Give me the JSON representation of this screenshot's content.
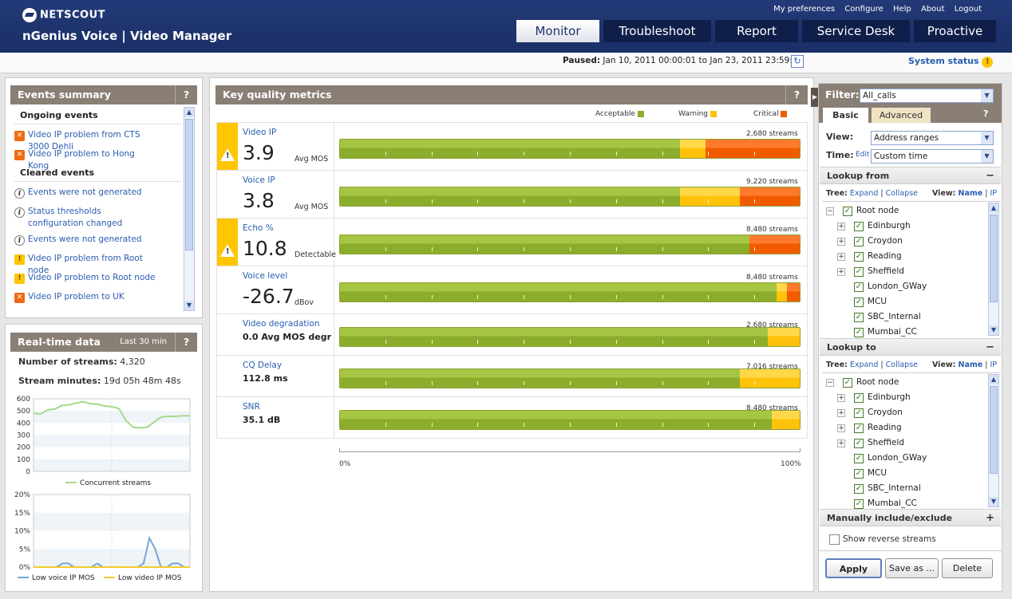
{
  "app": {
    "logo": "NETSCOUT",
    "title": "nGenius Voice | Video Manager"
  },
  "top_links": [
    "My preferences",
    "Configure",
    "Help",
    "About",
    "Logout"
  ],
  "nav_tabs": [
    "Monitor",
    "Troubleshoot",
    "Report",
    "Service Desk",
    "Proactive"
  ],
  "status": {
    "paused_label": "Paused:",
    "paused_range": "Jan 10, 2011 00:00:01 to Jan 23, 2011 23:59:59",
    "system_status": "System status"
  },
  "events": {
    "title": "Events summary",
    "help": "?",
    "ongoing_header": "Ongoing events",
    "ongoing": [
      {
        "icon": "error-icon",
        "text": "Video IP problem from CTS 3000 Dehli"
      },
      {
        "icon": "error-icon",
        "text": "Video IP problem to Hong Kong"
      }
    ],
    "cleared_header": "Cleared events",
    "cleared": [
      {
        "icon": "info-icon",
        "text": "Events were not generated"
      },
      {
        "icon": "info-icon",
        "text": "Status thresholds configuration changed"
      },
      {
        "icon": "info-icon",
        "text": "Events were not generated"
      },
      {
        "icon": "warning-icon",
        "text": "Video IP problem from Root node"
      },
      {
        "icon": "warning-icon",
        "text": "Video IP problem to Root node"
      },
      {
        "icon": "error-icon",
        "text": "Video IP problem to UK"
      }
    ]
  },
  "realtime": {
    "title": "Real-time data",
    "range": "Last 30 min",
    "help": "?",
    "streams_label": "Number of streams:",
    "streams_value": "4,320",
    "minutes_label": "Stream minutes:",
    "minutes_value": "19d 05h 48m 48s"
  },
  "chart_data": [
    {
      "type": "line",
      "yticks": [
        "600",
        "500",
        "400",
        "300",
        "200",
        "100",
        "0"
      ],
      "ylim": [
        0,
        600
      ],
      "series": [
        {
          "name": "Concurrent streams",
          "color": "#a6d98a",
          "values": [
            480,
            475,
            510,
            515,
            545,
            550,
            565,
            575,
            560,
            555,
            540,
            535,
            520,
            420,
            365,
            360,
            365,
            410,
            450,
            455,
            455,
            460,
            460
          ]
        }
      ]
    },
    {
      "type": "line",
      "yticks": [
        "20%",
        "15%",
        "10%",
        "5%",
        "0%"
      ],
      "ylim": [
        0,
        20
      ],
      "series": [
        {
          "name": "Low voice IP MOS",
          "color": "#7aa3d8",
          "values": [
            0,
            0,
            0,
            0,
            0,
            1,
            1,
            0,
            0,
            0,
            0,
            1,
            0,
            0,
            0,
            0,
            0,
            0,
            0,
            1,
            8,
            5,
            0,
            0,
            1,
            1,
            0,
            0
          ]
        },
        {
          "name": "Low video IP MOS",
          "color": "#f2cc2c",
          "values": [
            0,
            0,
            0,
            0,
            0,
            0,
            0,
            0,
            0,
            0,
            0,
            0,
            0,
            0,
            0,
            0,
            0,
            0,
            0,
            0,
            0,
            0,
            0,
            0,
            0,
            0,
            0,
            0
          ]
        }
      ]
    }
  ],
  "kqm": {
    "title": "Key quality metrics",
    "help": "?",
    "legend": [
      {
        "label": "Acceptable",
        "color": "#8cad2c"
      },
      {
        "label": "Warning",
        "color": "#ffc20a"
      },
      {
        "label": "Critical",
        "color": "#f25a00"
      }
    ],
    "metrics": [
      {
        "name": "Video IP",
        "value": "3.9",
        "unit": "Avg MOS",
        "streams": "2,680 streams",
        "warn": true,
        "acceptable": 74,
        "warning": 5.5,
        "critical": 20.5
      },
      {
        "name": "Voice IP",
        "value": "3.8",
        "unit": "Avg MOS",
        "streams": "9,220 streams",
        "warn": false,
        "acceptable": 74,
        "warning": 13,
        "critical": 13
      },
      {
        "name": "Echo %",
        "value": "10.8",
        "unit": "Detectable",
        "streams": "8,480 streams",
        "warn": true,
        "acceptable": 89,
        "warning": 0,
        "critical": 11
      },
      {
        "name": "Voice level",
        "value": "-26.7",
        "unit": "dBov",
        "streams": "8,480 streams",
        "warn": false,
        "acceptable": 95,
        "warning": 2.2,
        "critical": 2.8
      },
      {
        "name": "Video degradation",
        "sub": "0.0 Avg MOS degr",
        "streams": "2,680 streams",
        "warn": false,
        "acceptable": 93,
        "warning": 7,
        "critical": 0
      },
      {
        "name": "CQ Delay",
        "sub": "112.8 ms",
        "streams": "7,016 streams",
        "warn": false,
        "acceptable": 87,
        "warning": 13,
        "critical": 0
      },
      {
        "name": "SNR",
        "sub": "35.1 dB",
        "streams": "8,480 streams",
        "warn": false,
        "acceptable": 94,
        "warning": 6,
        "critical": 0
      }
    ],
    "axis_min": "0%",
    "axis_max": "100%"
  },
  "filter": {
    "label": "Filter:",
    "value": "All_calls",
    "tabs": [
      "Basic",
      "Advanced"
    ],
    "help": "?",
    "view_label": "View:",
    "view_value": "Address ranges",
    "time_label": "Time:",
    "time_edit": "Edit",
    "time_value": "Custom time",
    "lookup_from": "Lookup from",
    "lookup_to": "Lookup to",
    "tree_label": "Tree:",
    "expand": "Expand",
    "collapse": "Collapse",
    "view2_label": "View:",
    "view_name": "Name",
    "view_ip": "IP",
    "nodes": [
      {
        "name": "Root node",
        "level": 0,
        "exp": "−"
      },
      {
        "name": "Edinburgh",
        "level": 1,
        "exp": "+"
      },
      {
        "name": "Croydon",
        "level": 1,
        "exp": "+"
      },
      {
        "name": "Reading",
        "level": 1,
        "exp": "+"
      },
      {
        "name": "Sheffield",
        "level": 1,
        "exp": "+"
      },
      {
        "name": "London_GWay",
        "level": 1,
        "exp": ""
      },
      {
        "name": "MCU",
        "level": 1,
        "exp": ""
      },
      {
        "name": "SBC_Internal",
        "level": 1,
        "exp": ""
      },
      {
        "name": "Mumbai_CC",
        "level": 1,
        "exp": ""
      }
    ],
    "manual": "Manually include/exclude",
    "reverse": "Show reverse streams",
    "buttons": {
      "apply": "Apply",
      "save": "Save as ...",
      "delete": "Delete"
    }
  }
}
